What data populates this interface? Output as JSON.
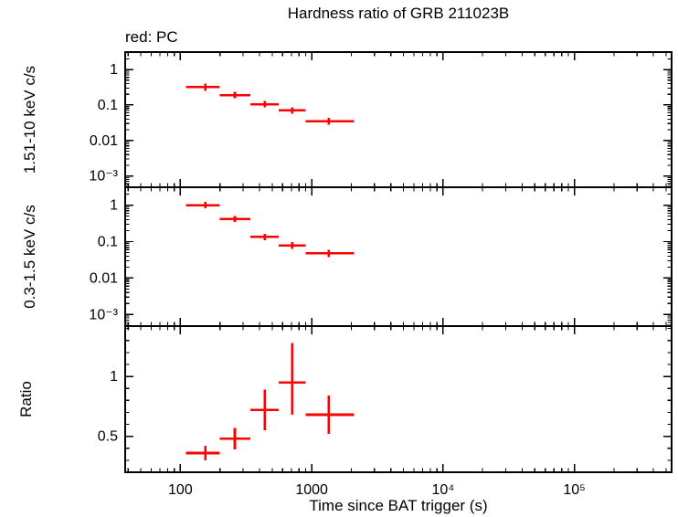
{
  "colors": {
    "data_red": "#ff0000",
    "axis_black": "#000000",
    "background": "#ffffff"
  },
  "chart_data": {
    "type": "scatter",
    "error_bars": true,
    "title": "Hardness ratio of GRB 211023B",
    "legend": "red: PC",
    "xlabel": "Time since BAT trigger (s)",
    "x_scale": "log",
    "x_range": [
      38,
      550000
    ],
    "x_ticks": [
      {
        "value": 100,
        "label": "100"
      },
      {
        "value": 1000,
        "label": "1000"
      },
      {
        "value": 10000,
        "label": "10⁴"
      },
      {
        "value": 100000,
        "label": "10⁵"
      }
    ],
    "panels": [
      {
        "name": "hard-band-rate",
        "ylabel": "1.51-10 keV c/s",
        "y_scale": "log",
        "y_range": [
          0.00048,
          3.1
        ],
        "y_ticks": [
          {
            "value": 1,
            "label": "1"
          },
          {
            "value": 0.1,
            "label": "0.1"
          },
          {
            "value": 0.01,
            "label": "0.01"
          },
          {
            "value": 0.001,
            "label": "10⁻³"
          }
        ],
        "points": [
          {
            "x": 155,
            "x_lo": 110,
            "x_hi": 200,
            "y": 0.32,
            "y_lo": 0.25,
            "y_hi": 0.4
          },
          {
            "x": 260,
            "x_lo": 200,
            "x_hi": 340,
            "y": 0.19,
            "y_lo": 0.155,
            "y_hi": 0.235
          },
          {
            "x": 440,
            "x_lo": 340,
            "x_hi": 560,
            "y": 0.105,
            "y_lo": 0.085,
            "y_hi": 0.13
          },
          {
            "x": 710,
            "x_lo": 560,
            "x_hi": 900,
            "y": 0.07,
            "y_lo": 0.056,
            "y_hi": 0.087
          },
          {
            "x": 1350,
            "x_lo": 900,
            "x_hi": 2100,
            "y": 0.035,
            "y_lo": 0.028,
            "y_hi": 0.044
          }
        ]
      },
      {
        "name": "soft-band-rate",
        "ylabel": "0.3-1.5 keV c/s",
        "y_scale": "log",
        "y_range": [
          0.00048,
          3.1
        ],
        "y_ticks": [
          {
            "value": 1,
            "label": "1"
          },
          {
            "value": 0.1,
            "label": "0.1"
          },
          {
            "value": 0.01,
            "label": "0.01"
          },
          {
            "value": 0.001,
            "label": "10⁻³"
          }
        ],
        "points": [
          {
            "x": 155,
            "x_lo": 110,
            "x_hi": 200,
            "y": 1.0,
            "y_lo": 0.82,
            "y_hi": 1.22
          },
          {
            "x": 260,
            "x_lo": 200,
            "x_hi": 340,
            "y": 0.42,
            "y_lo": 0.35,
            "y_hi": 0.5
          },
          {
            "x": 440,
            "x_lo": 340,
            "x_hi": 560,
            "y": 0.135,
            "y_lo": 0.11,
            "y_hi": 0.165
          },
          {
            "x": 710,
            "x_lo": 560,
            "x_hi": 900,
            "y": 0.078,
            "y_lo": 0.063,
            "y_hi": 0.096
          },
          {
            "x": 1350,
            "x_lo": 900,
            "x_hi": 2100,
            "y": 0.048,
            "y_lo": 0.038,
            "y_hi": 0.06
          }
        ]
      },
      {
        "name": "hardness-ratio",
        "ylabel": "Ratio",
        "y_scale": "linear",
        "y_range": [
          0.2,
          1.42
        ],
        "y_ticks": [
          {
            "value": 1,
            "label": "1"
          },
          {
            "value": 0.5,
            "label": "0.5"
          }
        ],
        "points": [
          {
            "x": 155,
            "x_lo": 110,
            "x_hi": 200,
            "y": 0.36,
            "y_lo": 0.3,
            "y_hi": 0.42
          },
          {
            "x": 260,
            "x_lo": 200,
            "x_hi": 340,
            "y": 0.48,
            "y_lo": 0.39,
            "y_hi": 0.57
          },
          {
            "x": 440,
            "x_lo": 340,
            "x_hi": 560,
            "y": 0.72,
            "y_lo": 0.55,
            "y_hi": 0.89
          },
          {
            "x": 710,
            "x_lo": 560,
            "x_hi": 900,
            "y": 0.95,
            "y_lo": 0.68,
            "y_hi": 1.28
          },
          {
            "x": 1350,
            "x_lo": 900,
            "x_hi": 2100,
            "y": 0.68,
            "y_lo": 0.52,
            "y_hi": 0.84
          }
        ]
      }
    ]
  }
}
